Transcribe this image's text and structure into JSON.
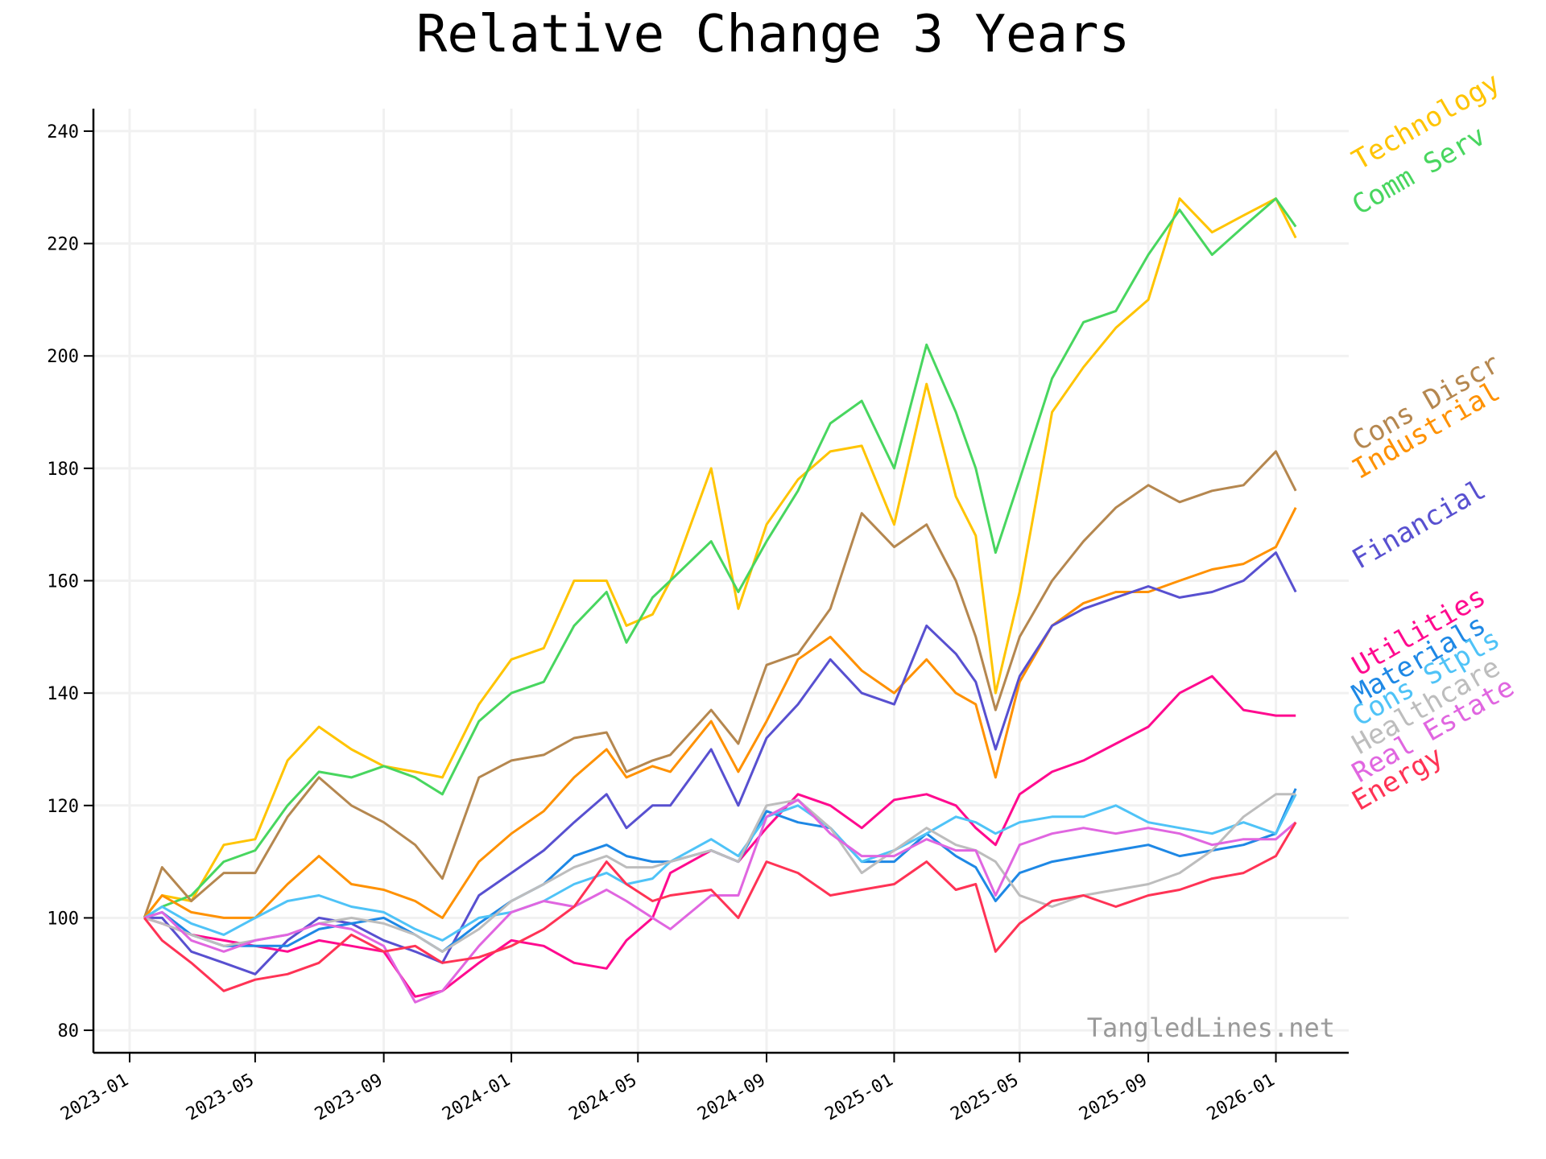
{
  "chart_data": {
    "type": "line",
    "title": "Relative Change 3 Years",
    "watermark": "TangledLines.net",
    "xlabel": "",
    "ylabel": "",
    "xlim": [
      "2023-01-01",
      "2026-02-05"
    ],
    "ylim": [
      76,
      244
    ],
    "x_ticks": [
      "2023-01",
      "2023-05",
      "2023-09",
      "2024-01",
      "2024-05",
      "2024-09",
      "2025-01",
      "2025-05",
      "2025-09",
      "2026-01"
    ],
    "y_ticks": [
      80,
      100,
      120,
      140,
      160,
      180,
      200,
      220,
      240
    ],
    "grid": true,
    "x": [
      "2023-01-15",
      "2023-02-01",
      "2023-03-01",
      "2023-04-01",
      "2023-05-01",
      "2023-06-01",
      "2023-07-01",
      "2023-08-01",
      "2023-09-01",
      "2023-10-01",
      "2023-10-27",
      "2023-12-01",
      "2024-01-01",
      "2024-02-01",
      "2024-03-01",
      "2024-04-01",
      "2024-04-20",
      "2024-05-15",
      "2024-06-01",
      "2024-07-10",
      "2024-08-05",
      "2024-09-01",
      "2024-10-01",
      "2024-11-01",
      "2024-12-01",
      "2025-01-01",
      "2025-02-01",
      "2025-03-01",
      "2025-03-20",
      "2025-04-08",
      "2025-05-01",
      "2025-06-01",
      "2025-07-01",
      "2025-08-01",
      "2025-09-01",
      "2025-10-01",
      "2025-11-01",
      "2025-12-01",
      "2026-01-01",
      "2026-01-20"
    ],
    "series": [
      {
        "name": "Technology",
        "color": "#FFC400",
        "label_y": 233,
        "values": [
          100,
          104,
          103,
          113,
          114,
          128,
          134,
          130,
          127,
          126,
          125,
          138,
          146,
          148,
          160,
          160,
          152,
          154,
          160,
          180,
          155,
          170,
          178,
          183,
          184,
          170,
          195,
          175,
          168,
          140,
          158,
          190,
          198,
          205,
          210,
          228,
          222,
          225,
          228,
          221
        ]
      },
      {
        "name": "Comm Serv",
        "color": "#48D65F",
        "label_y": 225,
        "values": [
          100,
          102,
          104,
          110,
          112,
          120,
          126,
          125,
          127,
          125,
          122,
          135,
          140,
          142,
          152,
          158,
          149,
          157,
          160,
          167,
          158,
          167,
          176,
          188,
          192,
          180,
          202,
          190,
          180,
          165,
          178,
          196,
          206,
          208,
          218,
          226,
          218,
          223,
          228,
          223
        ]
      },
      {
        "name": "Cons Discr",
        "color": "#B5874F",
        "label_y": 183,
        "values": [
          100,
          109,
          103,
          108,
          108,
          118,
          125,
          120,
          117,
          113,
          107,
          125,
          128,
          129,
          132,
          133,
          126,
          128,
          129,
          137,
          131,
          145,
          147,
          155,
          172,
          166,
          170,
          160,
          150,
          137,
          150,
          160,
          167,
          173,
          177,
          174,
          176,
          177,
          183,
          176
        ]
      },
      {
        "name": "Industrial",
        "color": "#FF9100",
        "label_y": 178,
        "values": [
          100,
          104,
          101,
          100,
          100,
          106,
          111,
          106,
          105,
          103,
          100,
          110,
          115,
          119,
          125,
          130,
          125,
          127,
          126,
          135,
          126,
          135,
          146,
          150,
          144,
          140,
          146,
          140,
          138,
          125,
          142,
          152,
          156,
          158,
          158,
          160,
          162,
          163,
          166,
          173
        ]
      },
      {
        "name": "Financial",
        "color": "#5850D0",
        "label_y": 162,
        "values": [
          100,
          100,
          94,
          92,
          90,
          96,
          100,
          99,
          96,
          94,
          92,
          104,
          108,
          112,
          117,
          122,
          116,
          120,
          120,
          130,
          120,
          132,
          138,
          146,
          140,
          138,
          152,
          147,
          142,
          130,
          143,
          152,
          155,
          157,
          159,
          157,
          158,
          160,
          165,
          158
        ]
      },
      {
        "name": "Utilities",
        "color": "#FF0A8F",
        "label_y": 143,
        "values": [
          100,
          99,
          97,
          96,
          95,
          94,
          96,
          95,
          94,
          86,
          87,
          92,
          96,
          95,
          92,
          91,
          96,
          100,
          108,
          112,
          110,
          116,
          122,
          120,
          116,
          121,
          122,
          120,
          116,
          113,
          122,
          126,
          128,
          131,
          134,
          140,
          143,
          137,
          136,
          136
        ]
      },
      {
        "name": "Materials",
        "color": "#1E88E5",
        "label_y": 138,
        "values": [
          100,
          101,
          97,
          95,
          95,
          95,
          98,
          99,
          100,
          97,
          94,
          99,
          103,
          106,
          111,
          113,
          111,
          110,
          110,
          112,
          110,
          119,
          117,
          116,
          110,
          110,
          115,
          111,
          109,
          103,
          108,
          110,
          111,
          112,
          113,
          111,
          112,
          113,
          115,
          123
        ]
      },
      {
        "name": "Cons Stpls",
        "color": "#4FC3F7",
        "label_y": 134,
        "values": [
          100,
          102,
          99,
          97,
          100,
          103,
          104,
          102,
          101,
          98,
          96,
          100,
          101,
          103,
          106,
          108,
          106,
          107,
          110,
          114,
          111,
          118,
          120,
          116,
          110,
          112,
          115,
          118,
          117,
          115,
          117,
          118,
          118,
          120,
          117,
          116,
          115,
          117,
          115,
          122
        ]
      },
      {
        "name": "Healthcare",
        "color": "#BDBDBD",
        "label_y": 129,
        "values": [
          100,
          99,
          97,
          95,
          96,
          97,
          99,
          100,
          99,
          97,
          94,
          98,
          103,
          106,
          109,
          111,
          109,
          109,
          110,
          112,
          110,
          120,
          121,
          116,
          108,
          112,
          116,
          113,
          112,
          110,
          104,
          102,
          104,
          105,
          106,
          108,
          112,
          118,
          122,
          122
        ]
      },
      {
        "name": "Real Estate",
        "color": "#E066E0",
        "label_y": 124,
        "values": [
          100,
          101,
          96,
          94,
          96,
          97,
          99,
          98,
          95,
          85,
          87,
          95,
          101,
          103,
          102,
          105,
          103,
          100,
          98,
          104,
          104,
          118,
          121,
          115,
          111,
          111,
          114,
          112,
          112,
          104,
          113,
          115,
          116,
          115,
          116,
          115,
          113,
          114,
          114,
          117
        ]
      },
      {
        "name": "Energy",
        "color": "#FF3355",
        "label_y": 119,
        "values": [
          100,
          96,
          92,
          87,
          89,
          90,
          92,
          97,
          94,
          95,
          92,
          93,
          95,
          98,
          102,
          110,
          106,
          103,
          104,
          105,
          100,
          110,
          108,
          104,
          105,
          106,
          110,
          105,
          106,
          94,
          99,
          103,
          104,
          102,
          104,
          105,
          107,
          108,
          111,
          117
        ]
      }
    ]
  }
}
